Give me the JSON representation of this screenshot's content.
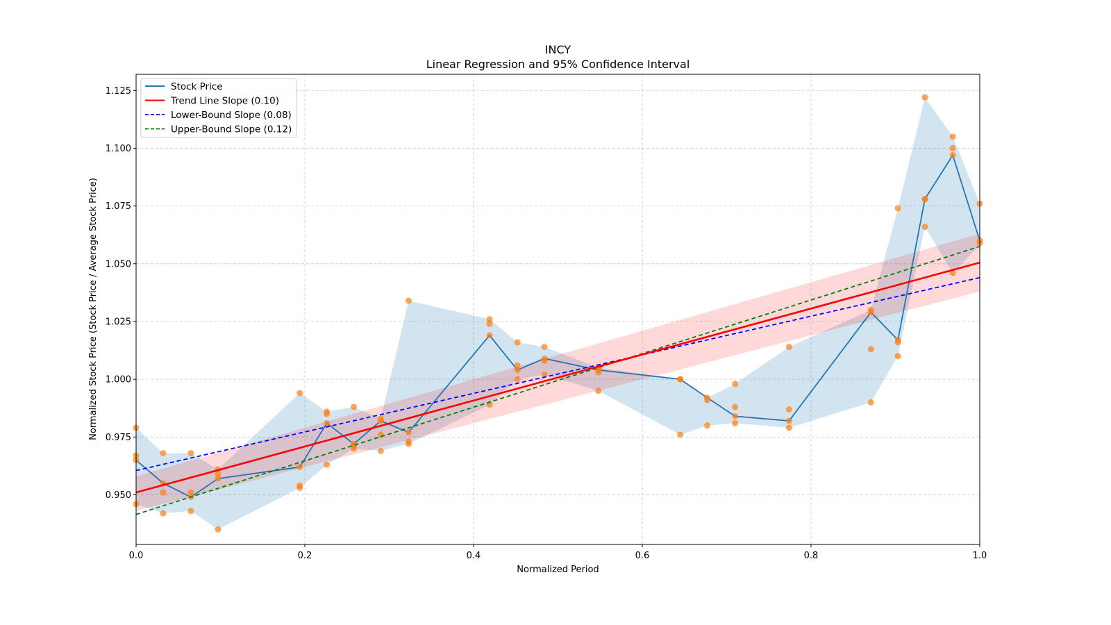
{
  "chart_data": {
    "type": "line",
    "title": "INCY",
    "subtitle": "Linear Regression and 95% Confidence Interval",
    "xlabel": "Normalized Period",
    "ylabel": "Normalized Stock Price (Stock Price / Average Stock Price)",
    "xlim": [
      0.0,
      1.0
    ],
    "ylim": [
      0.9285,
      1.132
    ],
    "xticks": [
      0.0,
      0.2,
      0.4,
      0.6,
      0.8,
      1.0
    ],
    "xtick_labels": [
      "0.0",
      "0.2",
      "0.4",
      "0.6",
      "0.8",
      "1.0"
    ],
    "yticks": [
      0.95,
      0.975,
      1.0,
      1.025,
      1.05,
      1.075,
      1.1,
      1.125
    ],
    "ytick_labels": [
      "0.950",
      "0.975",
      "1.000",
      "1.025",
      "1.050",
      "1.075",
      "1.100",
      "1.125"
    ],
    "grid": true,
    "legend_position": "top-left",
    "legend": [
      {
        "label": "Stock Price",
        "color": "#1f77b4",
        "style": "solid"
      },
      {
        "label": "Trend Line Slope (0.10)",
        "color": "#ff0000",
        "style": "solid"
      },
      {
        "label": "Lower-Bound Slope (0.08)",
        "color": "#0000ff",
        "style": "dashed"
      },
      {
        "label": "Upper-Bound Slope (0.12)",
        "color": "#008000",
        "style": "dashed"
      }
    ],
    "series": [
      {
        "name": "Stock Price",
        "color": "#1f77b4",
        "x": [
          0.0,
          0.032,
          0.065,
          0.097,
          0.194,
          0.226,
          0.258,
          0.29,
          0.323,
          0.419,
          0.452,
          0.484,
          0.548,
          0.645,
          0.677,
          0.71,
          0.774,
          0.871,
          0.903,
          0.935,
          0.968,
          1.0
        ],
        "y": [
          0.965,
          0.955,
          0.949,
          0.957,
          0.962,
          0.981,
          0.972,
          0.982,
          0.977,
          1.019,
          1.004,
          1.009,
          1.004,
          1.0,
          0.992,
          0.984,
          0.982,
          1.029,
          1.017,
          1.078,
          1.097,
          1.06
        ]
      }
    ],
    "range_band": {
      "name": "Price Range",
      "color": "#1f77b4",
      "x": [
        0.0,
        0.032,
        0.065,
        0.097,
        0.194,
        0.226,
        0.258,
        0.29,
        0.323,
        0.419,
        0.452,
        0.484,
        0.548,
        0.645,
        0.677,
        0.71,
        0.774,
        0.871,
        0.903,
        0.935,
        0.968,
        1.0
      ],
      "upper": [
        0.979,
        0.968,
        0.968,
        0.961,
        0.994,
        0.986,
        0.988,
        0.983,
        1.034,
        1.026,
        1.016,
        1.014,
        1.005,
        1.0,
        0.992,
        0.998,
        1.014,
        1.03,
        1.074,
        1.122,
        1.105,
        1.076
      ],
      "lower": [
        0.946,
        0.942,
        0.943,
        0.935,
        0.953,
        0.963,
        0.97,
        0.969,
        0.972,
        0.989,
        1.0,
        1.002,
        0.995,
        0.976,
        0.98,
        0.981,
        0.979,
        0.99,
        1.01,
        1.066,
        1.046,
        1.058
      ]
    },
    "scatter": {
      "name": "Daily Prices",
      "color": "#ff7f0e",
      "points": [
        [
          0.0,
          0.979
        ],
        [
          0.0,
          0.967
        ],
        [
          0.0,
          0.965
        ],
        [
          0.0,
          0.946
        ],
        [
          0.032,
          0.968
        ],
        [
          0.032,
          0.955
        ],
        [
          0.032,
          0.951
        ],
        [
          0.032,
          0.942
        ],
        [
          0.065,
          0.968
        ],
        [
          0.065,
          0.951
        ],
        [
          0.065,
          0.949
        ],
        [
          0.065,
          0.943
        ],
        [
          0.097,
          0.961
        ],
        [
          0.097,
          0.959
        ],
        [
          0.097,
          0.957
        ],
        [
          0.097,
          0.935
        ],
        [
          0.194,
          0.994
        ],
        [
          0.194,
          0.962
        ],
        [
          0.194,
          0.954
        ],
        [
          0.194,
          0.953
        ],
        [
          0.226,
          0.986
        ],
        [
          0.226,
          0.985
        ],
        [
          0.226,
          0.981
        ],
        [
          0.226,
          0.963
        ],
        [
          0.258,
          0.988
        ],
        [
          0.258,
          0.971
        ],
        [
          0.258,
          0.97
        ],
        [
          0.258,
          0.972
        ],
        [
          0.29,
          0.983
        ],
        [
          0.29,
          0.982
        ],
        [
          0.29,
          0.976
        ],
        [
          0.29,
          0.969
        ],
        [
          0.323,
          1.034
        ],
        [
          0.323,
          0.977
        ],
        [
          0.323,
          0.973
        ],
        [
          0.323,
          0.972
        ],
        [
          0.419,
          1.026
        ],
        [
          0.419,
          1.024
        ],
        [
          0.419,
          1.019
        ],
        [
          0.419,
          0.989
        ],
        [
          0.452,
          1.016
        ],
        [
          0.452,
          1.006
        ],
        [
          0.452,
          1.004
        ],
        [
          0.452,
          1.0
        ],
        [
          0.484,
          1.014
        ],
        [
          0.484,
          1.009
        ],
        [
          0.484,
          1.008
        ],
        [
          0.484,
          1.002
        ],
        [
          0.548,
          1.005
        ],
        [
          0.548,
          1.004
        ],
        [
          0.548,
          1.003
        ],
        [
          0.548,
          0.995
        ],
        [
          0.645,
          1.0
        ],
        [
          0.645,
          1.0
        ],
        [
          0.645,
          0.976
        ],
        [
          0.677,
          0.992
        ],
        [
          0.677,
          0.991
        ],
        [
          0.677,
          0.98
        ],
        [
          0.71,
          0.998
        ],
        [
          0.71,
          0.988
        ],
        [
          0.71,
          0.984
        ],
        [
          0.71,
          0.981
        ],
        [
          0.774,
          1.014
        ],
        [
          0.774,
          0.987
        ],
        [
          0.774,
          0.982
        ],
        [
          0.774,
          0.979
        ],
        [
          0.871,
          1.03
        ],
        [
          0.871,
          1.029
        ],
        [
          0.871,
          1.013
        ],
        [
          0.871,
          0.99
        ],
        [
          0.903,
          1.074
        ],
        [
          0.903,
          1.017
        ],
        [
          0.903,
          1.016
        ],
        [
          0.903,
          1.01
        ],
        [
          0.935,
          1.122
        ],
        [
          0.935,
          1.078
        ],
        [
          0.935,
          1.078
        ],
        [
          0.935,
          1.066
        ],
        [
          0.968,
          1.105
        ],
        [
          0.968,
          1.1
        ],
        [
          0.968,
          1.097
        ],
        [
          0.968,
          1.046
        ],
        [
          1.0,
          1.076
        ],
        [
          1.0,
          1.06
        ],
        [
          1.0,
          1.059
        ]
      ]
    },
    "trend_line": {
      "label": "Trend Line Slope (0.10)",
      "color": "#ff0000",
      "intercept": 0.951,
      "slope": 0.0995,
      "ci_start": [
        0.943,
        0.958
      ],
      "ci_end": [
        1.038,
        1.063
      ]
    },
    "lower_bound_line": {
      "label": "Lower-Bound Slope (0.08)",
      "color": "#0000ff",
      "intercept": 0.9605,
      "slope": 0.0835
    },
    "upper_bound_line": {
      "label": "Upper-Bound Slope (0.12)",
      "color": "#008000",
      "intercept": 0.9415,
      "slope": 0.116
    }
  }
}
